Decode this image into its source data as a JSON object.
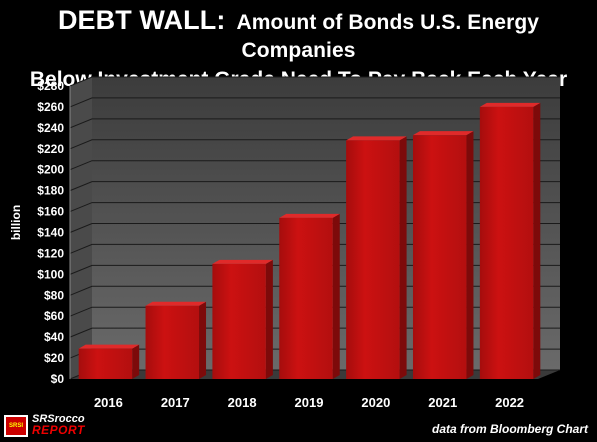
{
  "title": {
    "line1_bold": "DEBT WALL:",
    "line1_rest": "Amount of Bonds U.S. Energy Companies",
    "line2": "Below Investment Grade Need To Pay Back Each Year"
  },
  "source_note": "data from Bloomberg Chart",
  "logo": {
    "mark": "SRSI",
    "line1": "SRSrocco",
    "line2": "REPORT"
  },
  "colors": {
    "background": "#000000",
    "plot_back": "#595959",
    "bar": "#cc1111",
    "bar_side": "#7d0a0a",
    "bar_top": "#e02a2a"
  },
  "chart_data": {
    "type": "bar",
    "categories": [
      "2016",
      "2017",
      "2018",
      "2019",
      "2020",
      "2021",
      "2022"
    ],
    "values": [
      29,
      70,
      110,
      154,
      228,
      233,
      260
    ],
    "ylabel": "billion",
    "ylim": [
      0,
      280
    ],
    "yticks": [
      "$0",
      "$20",
      "$40",
      "$60",
      "$80",
      "$100",
      "$120",
      "$140",
      "$160",
      "$180",
      "$200",
      "$220",
      "$240",
      "$260",
      "$280"
    ],
    "grid": true,
    "legend": "none"
  }
}
